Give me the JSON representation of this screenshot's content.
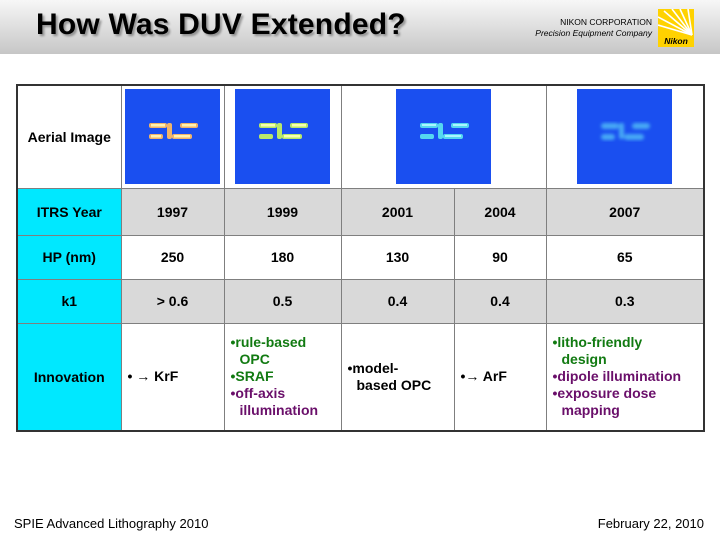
{
  "header": {
    "title": "How Was DUV Extended?",
    "corp_name": "NIKON CORPORATION",
    "corp_sub": "Precision Equipment Company",
    "logo_text": "Nikon"
  },
  "table": {
    "row_labels": {
      "aerial": "Aerial Image",
      "itrs": "ITRS Year",
      "hp": "HP (nm)",
      "k1": "k1",
      "innovation": "Innovation"
    },
    "years": [
      "1997",
      "1999",
      "2001",
      "2004",
      "2007"
    ],
    "hp": [
      "250",
      "180",
      "130",
      "90",
      "65"
    ],
    "k1": [
      "> 0.6",
      "0.5",
      "0.4",
      "0.4",
      "0.3"
    ],
    "innovation": {
      "c1997": "• → KrF",
      "c1999": [
        "•rule-based",
        "OPC",
        "•SRAF",
        "•off-axis",
        "illumination"
      ],
      "c2001": [
        "•model-",
        "based OPC"
      ],
      "c2004": "•→ ArF",
      "c2007": [
        "•litho-friendly",
        "design",
        "•dipole illumination",
        "•exposure dose",
        "mapping"
      ]
    }
  },
  "colors": {
    "row_header": "#00e8ff",
    "shade": "#d9d9d9",
    "image_bg": "#1a4ff0",
    "blue_text": "#1a1aa8",
    "green_text": "#117a11",
    "purple_text": "#6a0f6a"
  },
  "footer": {
    "left": "SPIE Advanced Lithography 2010",
    "right": "February 22, 2010"
  }
}
